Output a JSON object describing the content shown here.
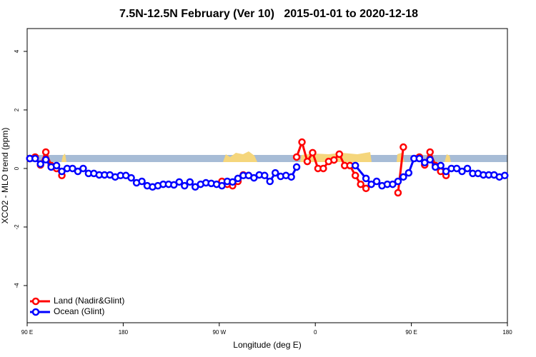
{
  "chart_data": {
    "type": "line",
    "title": "7.5N-12.5N February (Ver 10)   2015-01-01 to 2020-12-18",
    "xlabel": "Longitude (deg E)",
    "ylabel": "XCO2 - MLO trend (ppm)",
    "xlim": [
      90,
      540
    ],
    "ylim": [
      -5.27,
      4.78
    ],
    "xticks": [
      {
        "value": 90,
        "label": "90 E"
      },
      180,
      {
        "value": 270,
        "label": "90 W"
      },
      {
        "value": 360,
        "label": "0"
      },
      {
        "value": 450,
        "label": "90 E"
      },
      {
        "value": 540,
        "label": "180"
      }
    ],
    "yticks": [
      -4,
      -2,
      0,
      2,
      4
    ],
    "legend": "bottom-left",
    "series": [
      {
        "name": "Land (Nadir&Glint)",
        "color": "#ff0000",
        "x": [
          92.5,
          97.5,
          102.5,
          107.5,
          112.5,
          117.5,
          122.5,
          null,
          272.5,
          277.5,
          282.5,
          287.5,
          292.5,
          297.5,
          null,
          342.5,
          347.5,
          352.5,
          357.5,
          362.5,
          367.5,
          372.5,
          377.5,
          382.5,
          387.5,
          392.5,
          397.5,
          402.5,
          407.5,
          null,
          437.5,
          442.5,
          null,
          457.5,
          462.5,
          467.5,
          472.5,
          477.5,
          482.5
        ],
        "values": [
          0.34,
          0.39,
          0.12,
          0.56,
          0.1,
          0.0,
          -0.24,
          null,
          -0.44,
          -0.54,
          -0.59,
          -0.44,
          -0.22,
          -0.24,
          null,
          0.39,
          0.9,
          0.24,
          0.54,
          0.0,
          0.0,
          0.24,
          0.29,
          0.49,
          0.1,
          0.1,
          -0.24,
          -0.54,
          -0.68,
          null,
          -0.83,
          0.73,
          null,
          0.39,
          0.12,
          0.56,
          0.1,
          -0.1,
          -0.24
        ]
      },
      {
        "name": "Ocean (Glint)",
        "color": "#0000ff",
        "x": [
          92.5,
          97.5,
          102.5,
          107.5,
          112.5,
          117.5,
          122.5,
          127.5,
          132.5,
          137.5,
          142.5,
          147.5,
          152.5,
          157.5,
          162.5,
          167.5,
          172.5,
          177.5,
          182.5,
          187.5,
          192.5,
          197.5,
          202.5,
          207.5,
          212.5,
          217.5,
          222.5,
          227.5,
          232.5,
          237.5,
          242.5,
          247.5,
          252.5,
          257.5,
          262.5,
          267.5,
          272.5,
          277.5,
          282.5,
          287.5,
          292.5,
          297.5,
          302.5,
          307.5,
          312.5,
          317.5,
          322.5,
          327.5,
          332.5,
          337.5,
          342.5,
          null,
          397.5,
          407.5,
          412.5,
          417.5,
          422.5,
          427.5,
          432.5,
          437.5,
          442.5,
          447.5,
          452.5,
          457.5,
          462.5,
          467.5,
          472.5,
          477.5,
          482.5,
          487.5,
          492.5,
          497.5,
          502.5,
          507.5,
          512.5,
          517.5,
          522.5,
          527.5,
          532.5,
          537.5
        ],
        "values": [
          0.34,
          0.34,
          0.15,
          0.3,
          0.05,
          0.1,
          -0.1,
          0.0,
          0.0,
          -0.1,
          0.0,
          -0.17,
          -0.17,
          -0.22,
          -0.22,
          -0.22,
          -0.29,
          -0.24,
          -0.24,
          -0.32,
          -0.49,
          -0.44,
          -0.59,
          -0.63,
          -0.59,
          -0.54,
          -0.54,
          -0.56,
          -0.46,
          -0.59,
          -0.46,
          -0.63,
          -0.54,
          -0.49,
          -0.51,
          -0.54,
          -0.59,
          -0.44,
          -0.46,
          -0.34,
          -0.24,
          -0.24,
          -0.32,
          -0.22,
          -0.24,
          -0.44,
          -0.15,
          -0.27,
          -0.24,
          -0.29,
          0.05,
          null,
          0.1,
          -0.34,
          -0.54,
          -0.44,
          -0.59,
          -0.54,
          -0.54,
          -0.44,
          -0.29,
          -0.15,
          0.34,
          0.34,
          0.2,
          0.3,
          0.05,
          0.1,
          -0.1,
          0.0,
          0.0,
          -0.1,
          0.0,
          -0.17,
          -0.17,
          -0.22,
          -0.22,
          -0.22,
          -0.29,
          -0.24
        ]
      }
    ]
  }
}
